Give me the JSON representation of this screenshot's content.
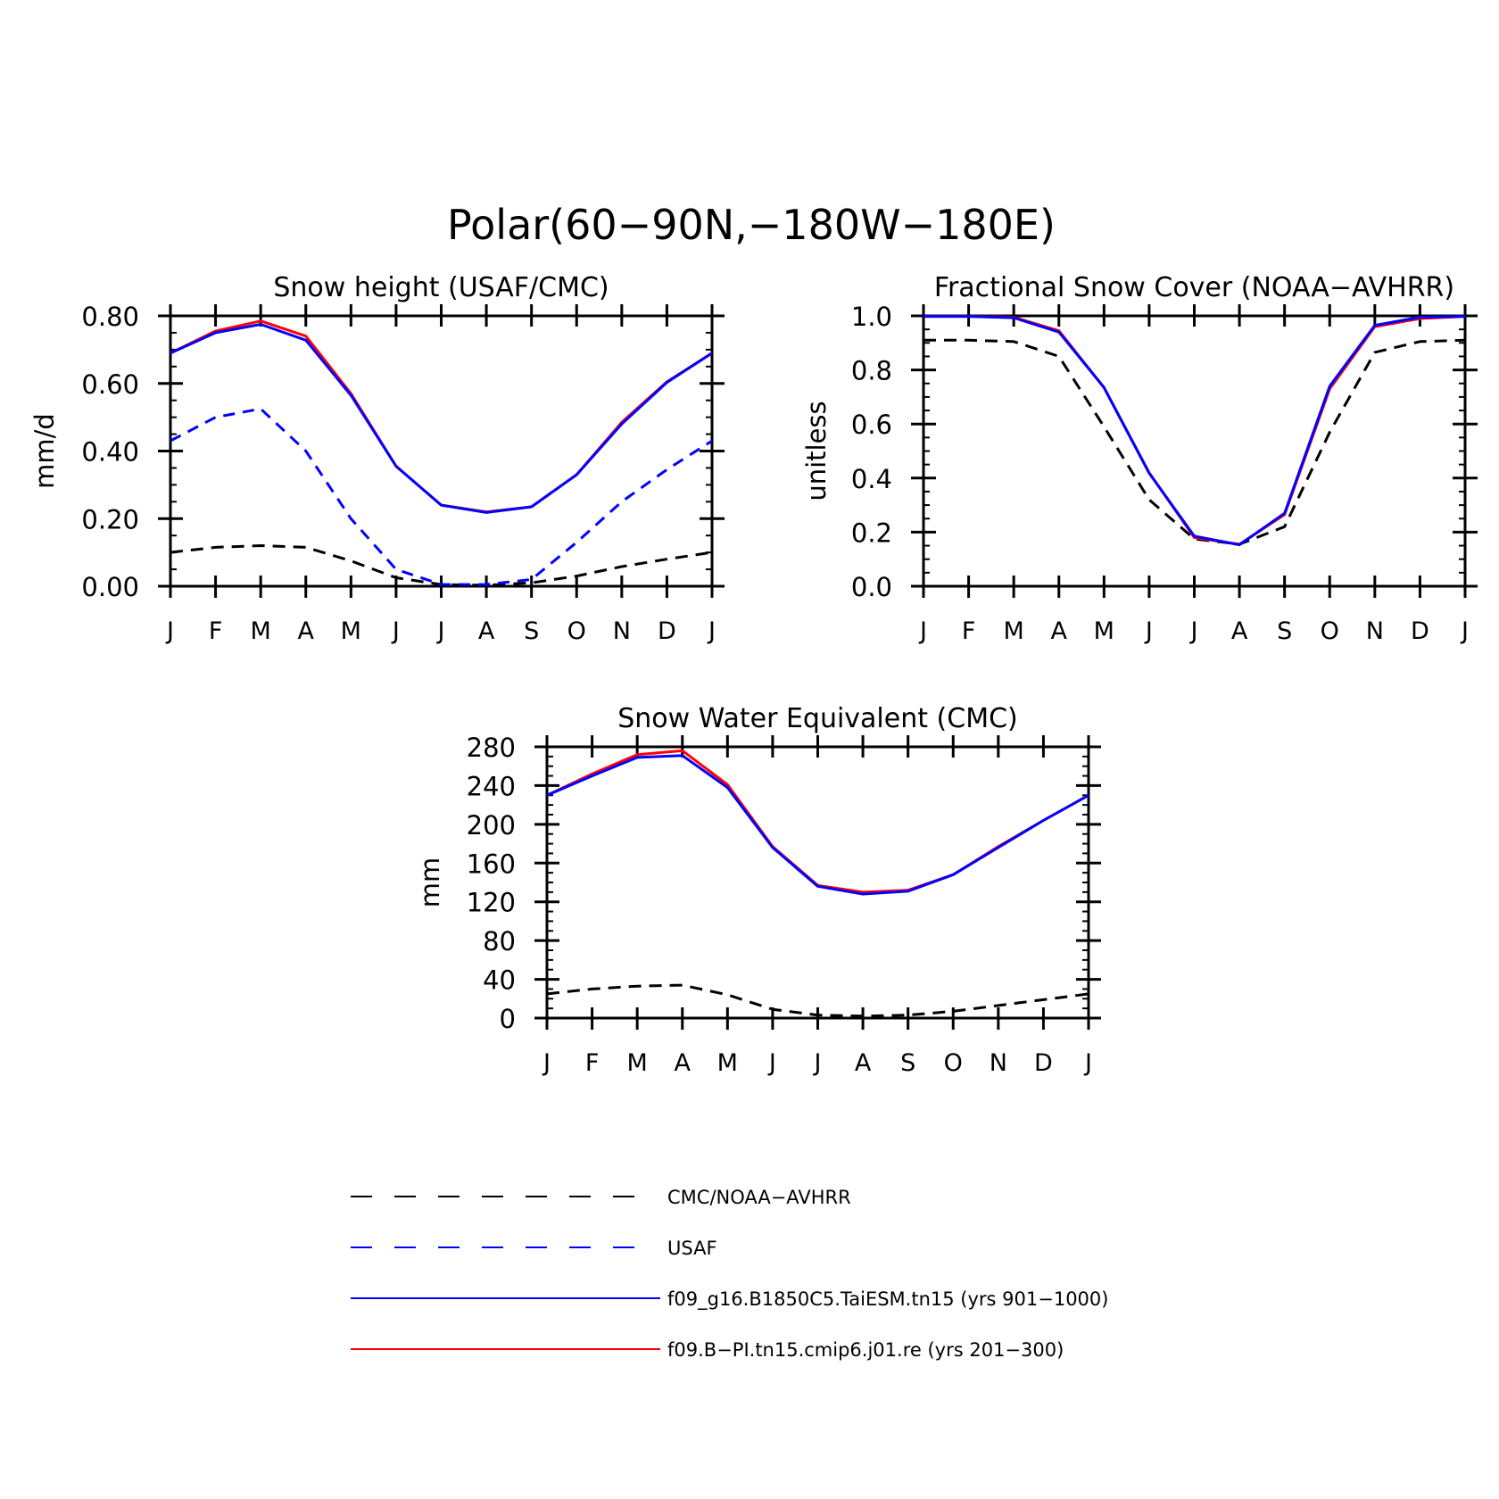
{
  "title": "Polar(60−90N,−180W−180E)",
  "months": [
    "J",
    "F",
    "M",
    "A",
    "M",
    "J",
    "J",
    "A",
    "S",
    "O",
    "N",
    "D",
    "J"
  ],
  "colors": {
    "obs": "#000000",
    "usaf": "#0000ff",
    "taiesm": "#0000ff",
    "cmip6": "#ff0000"
  },
  "legend": [
    {
      "key": "obs",
      "label": "CMC/NOAA−AVHRR",
      "dash": true
    },
    {
      "key": "usaf",
      "label": "USAF",
      "dash": true
    },
    {
      "key": "taiesm",
      "label": "f09_g16.B1850C5.TaiESM.tn15 (yrs 901−1000)",
      "dash": false
    },
    {
      "key": "cmip6",
      "label": "f09.B−PI.tn15.cmip6.j01.re (yrs 201−300)",
      "dash": false
    }
  ],
  "chart_data": [
    {
      "type": "line",
      "title": "Snow height (USAF/CMC)",
      "ylabel": "mm/d",
      "xlabel": "",
      "ylim": [
        0,
        0.8
      ],
      "yticks": [
        "0.00",
        "0.20",
        "0.40",
        "0.60",
        "0.80"
      ],
      "ytick_values": [
        0,
        0.2,
        0.4,
        0.6,
        0.8
      ],
      "categories": [
        "J",
        "F",
        "M",
        "A",
        "M",
        "J",
        "J",
        "A",
        "S",
        "O",
        "N",
        "D",
        "J"
      ],
      "series": [
        {
          "key": "obs",
          "values": [
            0.1,
            0.115,
            0.12,
            0.115,
            0.075,
            0.025,
            0.005,
            0.003,
            0.01,
            0.03,
            0.058,
            0.08,
            0.1
          ]
        },
        {
          "key": "usaf",
          "values": [
            0.43,
            0.5,
            0.525,
            0.4,
            0.2,
            0.05,
            0.005,
            0.005,
            0.02,
            0.13,
            0.25,
            0.345,
            0.43
          ]
        },
        {
          "key": "cmip6",
          "values": [
            0.69,
            0.755,
            0.785,
            0.74,
            0.57,
            0.355,
            0.24,
            0.22,
            0.235,
            0.33,
            0.485,
            0.605,
            0.69
          ]
        },
        {
          "key": "taiesm",
          "values": [
            0.69,
            0.75,
            0.775,
            0.728,
            0.565,
            0.355,
            0.24,
            0.218,
            0.235,
            0.33,
            0.48,
            0.603,
            0.69
          ]
        }
      ]
    },
    {
      "type": "line",
      "title": "Fractional Snow Cover (NOAA−AVHRR)",
      "ylabel": "unitless",
      "xlabel": "",
      "ylim": [
        0,
        1.0
      ],
      "yticks": [
        "0.0",
        "0.2",
        "0.4",
        "0.6",
        "0.8",
        "1.0"
      ],
      "ytick_values": [
        0,
        0.2,
        0.4,
        0.6,
        0.8,
        1.0
      ],
      "categories": [
        "J",
        "F",
        "M",
        "A",
        "M",
        "J",
        "J",
        "A",
        "S",
        "O",
        "N",
        "D",
        "J"
      ],
      "series": [
        {
          "key": "obs",
          "values": [
            0.91,
            0.91,
            0.905,
            0.85,
            0.59,
            0.32,
            0.175,
            0.155,
            0.22,
            0.57,
            0.865,
            0.905,
            0.91
          ]
        },
        {
          "key": "cmip6",
          "values": [
            0.998,
            0.998,
            0.995,
            0.945,
            0.735,
            0.42,
            0.18,
            0.155,
            0.265,
            0.73,
            0.96,
            0.99,
            0.998
          ]
        },
        {
          "key": "taiesm",
          "values": [
            0.998,
            0.998,
            0.993,
            0.94,
            0.735,
            0.418,
            0.185,
            0.153,
            0.27,
            0.74,
            0.965,
            0.995,
            0.998
          ]
        }
      ]
    },
    {
      "type": "line",
      "title": "Snow Water Equivalent (CMC)",
      "ylabel": "mm",
      "xlabel": "",
      "ylim": [
        0,
        280
      ],
      "yticks": [
        "0",
        "40",
        "80",
        "120",
        "160",
        "200",
        "240",
        "280"
      ],
      "ytick_values": [
        0,
        40,
        80,
        120,
        160,
        200,
        240,
        280
      ],
      "categories": [
        "J",
        "F",
        "M",
        "A",
        "M",
        "J",
        "J",
        "A",
        "S",
        "O",
        "N",
        "D",
        "J"
      ],
      "series": [
        {
          "key": "obs",
          "values": [
            25,
            30,
            33,
            34,
            24,
            9,
            3,
            2,
            3,
            7,
            13,
            19,
            25
          ]
        },
        {
          "key": "cmip6",
          "values": [
            230,
            252,
            272,
            276,
            241,
            177,
            137,
            130,
            132,
            148,
            177,
            204,
            230
          ]
        },
        {
          "key": "taiesm",
          "values": [
            230,
            250,
            269,
            271,
            238,
            176,
            136,
            128,
            131,
            148,
            176,
            204,
            230
          ]
        }
      ]
    }
  ]
}
